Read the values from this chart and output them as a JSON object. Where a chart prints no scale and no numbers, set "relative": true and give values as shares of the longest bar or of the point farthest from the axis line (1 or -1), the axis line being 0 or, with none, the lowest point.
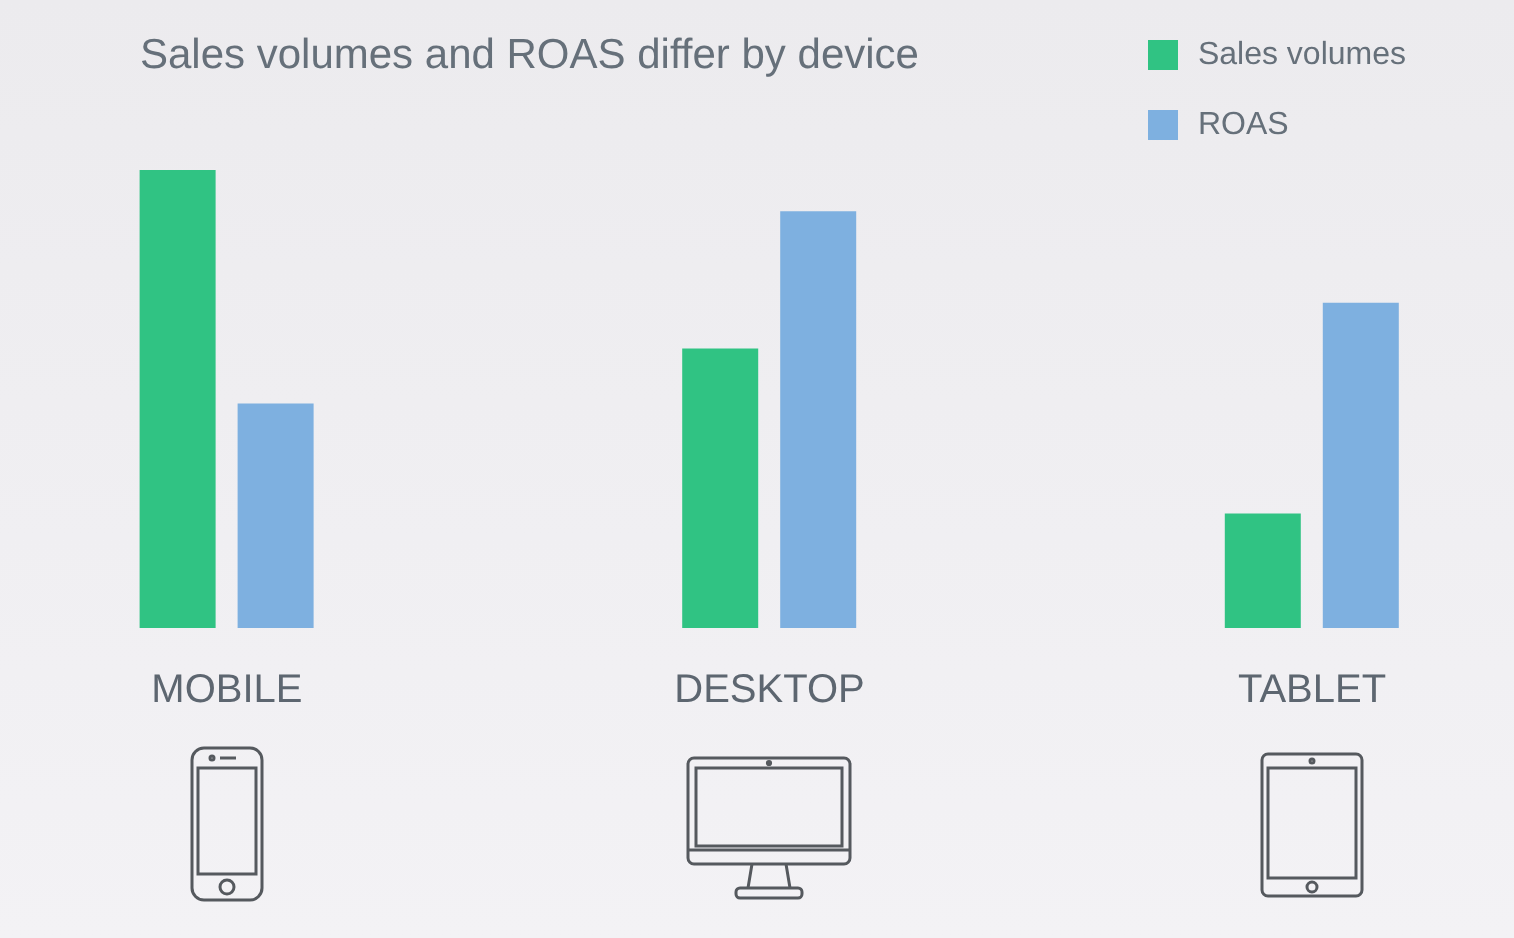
{
  "chart_data": {
    "type": "bar",
    "title": "Sales volumes and ROAS differ by device",
    "categories": [
      "MOBILE",
      "DESKTOP",
      "TABLET"
    ],
    "relative": true,
    "series": [
      {
        "name": "Sales volumes",
        "color": "#30c383",
        "values": [
          1,
          0.61,
          0.25
        ]
      },
      {
        "name": "ROAS",
        "color": "#7eb0e0",
        "values": [
          0.49,
          0.91,
          0.71
        ]
      }
    ],
    "legend": "top right"
  }
}
